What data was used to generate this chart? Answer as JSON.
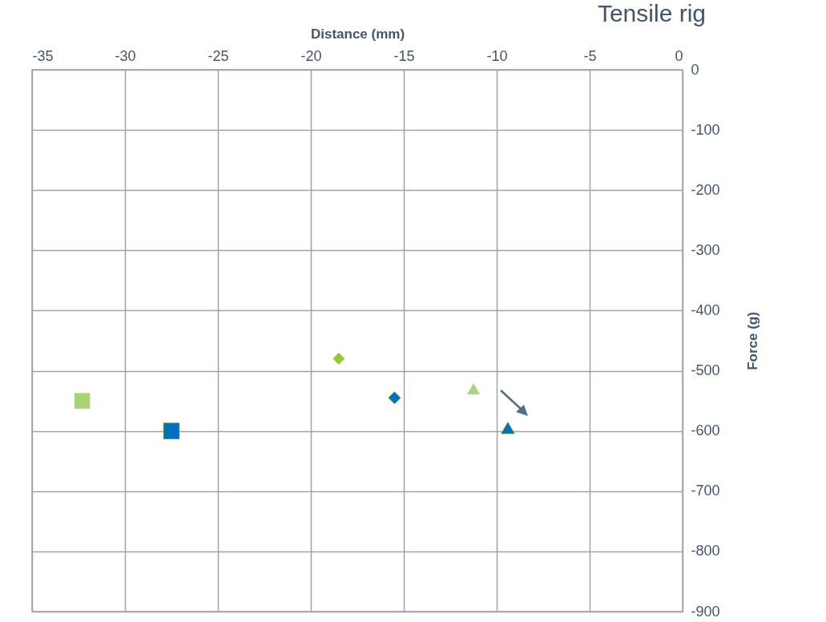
{
  "chart_data": {
    "type": "scatter",
    "title": "Tensile rig",
    "xlabel": "Distance (mm)",
    "ylabel": "Force (g)",
    "xlim": [
      -35,
      0
    ],
    "xticks": [
      -35,
      -30,
      -25,
      -20,
      -15,
      -10,
      -5,
      0
    ],
    "ylim": [
      -900,
      0
    ],
    "yticks": [
      -900,
      -800,
      -700,
      -600,
      -500,
      -400,
      -300,
      -200,
      -100,
      0
    ],
    "grid": true,
    "series": [
      {
        "color": "#a9d46f",
        "marker": "square",
        "x": [
          -32.3
        ],
        "values": [
          -550
        ]
      },
      {
        "color": "#0070c0",
        "marker": "square",
        "x": [
          -27.5
        ],
        "values": [
          -600
        ]
      },
      {
        "color": "#92c83e",
        "marker": "diamond",
        "x": [
          -18.5
        ],
        "values": [
          -480
        ]
      },
      {
        "color": "#0070c0",
        "marker": "diamond",
        "x": [
          -15.5
        ],
        "values": [
          -545
        ]
      },
      {
        "color": "#acd480",
        "marker": "triangle",
        "x": [
          -11.25
        ],
        "values": [
          -530
        ]
      },
      {
        "color": "#0070c0",
        "marker": "triangle",
        "x": [
          -9.4
        ],
        "values": [
          -595
        ]
      }
    ]
  }
}
